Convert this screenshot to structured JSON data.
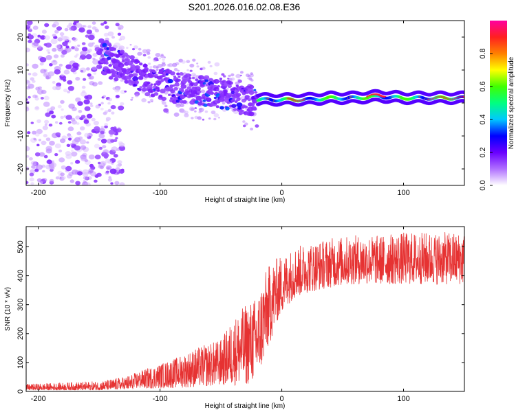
{
  "figure": {
    "title": "S201.2026.016.02.08.E36"
  },
  "chart_data": [
    {
      "type": "heatmap",
      "name": "spectrogram",
      "xlabel": "Height of straight line (km)",
      "ylabel": "Frequency (Hz)",
      "xlim": [
        -210,
        150
      ],
      "ylim": [
        -25,
        25
      ],
      "xticks": [
        -200,
        -100,
        0,
        100
      ],
      "yticks": [
        -20,
        -10,
        0,
        10,
        20
      ],
      "colorbar": {
        "label": "Normalized spectral amplitude",
        "range": [
          0.0,
          1.0
        ],
        "ticks": [
          0.0,
          0.2,
          0.4,
          0.6,
          0.8
        ],
        "tick_labels": [
          "0.0",
          "0.2",
          "0.4",
          "0.6",
          "0.8"
        ],
        "colormap": [
          "#ffffff",
          "#b070ff",
          "#6a00ff",
          "#0000ff",
          "#00c8ff",
          "#00ff80",
          "#40ff00",
          "#ffff00",
          "#ff8000",
          "#ff2020",
          "#ff00a0"
        ]
      },
      "ridge": {
        "x": [
          -150,
          -130,
          -110,
          -90,
          -70,
          -50,
          -35,
          -20,
          -10,
          0,
          20,
          40,
          60,
          80,
          100,
          120,
          150
        ],
        "frequency_hz": [
          15,
          11,
          7,
          5,
          4,
          3,
          1,
          1,
          1,
          1,
          1,
          1.5,
          1.5,
          2,
          1.5,
          1.5,
          1.5
        ]
      }
    },
    {
      "type": "line",
      "name": "snr",
      "xlabel": "Height of straight line (km)",
      "ylabel": "SNR (10 * v/v)",
      "xlim": [
        -210,
        150
      ],
      "ylim": [
        0,
        570
      ],
      "xticks": [
        -200,
        -100,
        0,
        100
      ],
      "yticks": [
        0,
        100,
        200,
        300,
        400,
        500
      ],
      "color": "#e63232",
      "envelope": {
        "x": [
          -210,
          -180,
          -150,
          -130,
          -110,
          -90,
          -70,
          -50,
          -40,
          -30,
          -20,
          -15,
          -10,
          -5,
          0,
          5,
          10,
          20,
          30,
          40,
          60,
          80,
          100,
          120,
          150
        ],
        "low": [
          5,
          5,
          5,
          8,
          10,
          12,
          15,
          20,
          20,
          20,
          40,
          100,
          160,
          230,
          270,
          300,
          320,
          340,
          350,
          360,
          370,
          370,
          370,
          370,
          370
        ],
        "high": [
          25,
          30,
          35,
          50,
          80,
          110,
          150,
          180,
          250,
          300,
          330,
          400,
          440,
          460,
          470,
          480,
          500,
          510,
          520,
          530,
          540,
          540,
          550,
          550,
          550
        ]
      }
    }
  ]
}
